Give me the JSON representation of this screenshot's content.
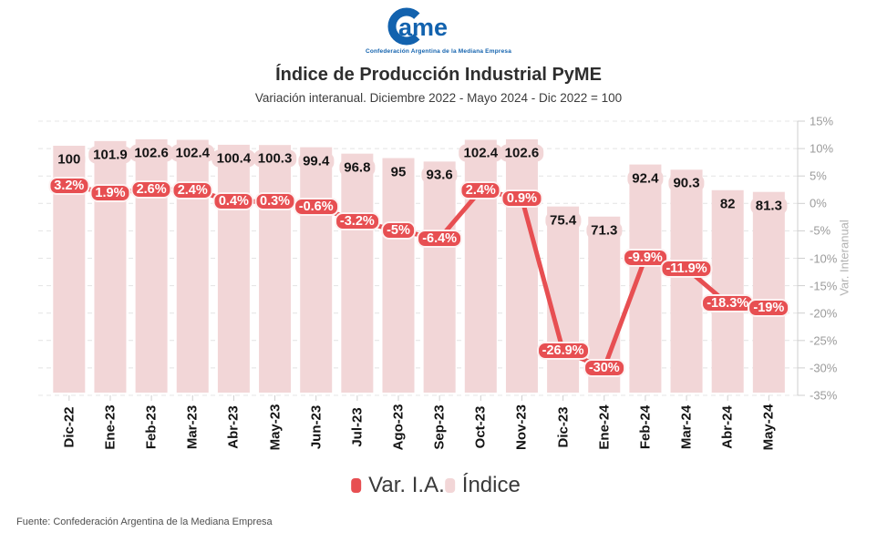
{
  "header": {
    "logo": {
      "wordmark": "Came",
      "wordmark_tail": "ame",
      "tagline": "Confederación Argentina de la Mediana Empresa"
    },
    "title": "Índice de Producción Industrial PyME",
    "subtitle": "Variación interanual. Diciembre 2022 - Mayo 2024 - Dic 2022 = 100"
  },
  "colors": {
    "brand_blue": "#1262ae",
    "line_red": "#e74f52",
    "bar_pink": "#f2d6d7"
  },
  "chart_data": {
    "type": "bar+line",
    "title": "Índice de Producción Industrial PyME",
    "subtitle": "Variación interanual. Diciembre 2022 - Mayo 2024 - Dic 2022 = 100",
    "categories": [
      "Dic-22",
      "Ene-23",
      "Feb-23",
      "Mar-23",
      "Abr-23",
      "May-23",
      "Jun-23",
      "Jul-23",
      "Ago-23",
      "Sep-23",
      "Oct-23",
      "Nov-23",
      "Dic-23",
      "Ene-24",
      "Feb-24",
      "Mar-24",
      "Abr-24",
      "May-24"
    ],
    "series": [
      {
        "name": "Índice",
        "type": "bar",
        "color": "#f2d6d7",
        "values": [
          100,
          101.9,
          102.6,
          102.4,
          100.4,
          100.3,
          99.4,
          96.8,
          95,
          93.6,
          102.4,
          102.6,
          75.4,
          71.3,
          92.4,
          90.3,
          82,
          81.3
        ],
        "labels": [
          "100",
          "101.9",
          "102.6",
          "102.4",
          "100.4",
          "100.3",
          "99.4",
          "96.8",
          "95",
          "93.6",
          "102.4",
          "102.6",
          "75.4",
          "71.3",
          "92.4",
          "90.3",
          "82",
          "81.3"
        ]
      },
      {
        "name": "Var. I.A.",
        "type": "line",
        "color": "#e74f52",
        "values": [
          3.2,
          1.9,
          2.6,
          2.4,
          0.4,
          0.3,
          -0.6,
          -3.2,
          -5,
          -6.4,
          2.4,
          0.9,
          -26.9,
          -30,
          -9.9,
          -11.9,
          -18.3,
          -19
        ],
        "labels": [
          "3.2%",
          "1.9%",
          "2.6%",
          "2.4%",
          "0.4%",
          "0.3%",
          "-0.6%",
          "-3.2%",
          "-5%",
          "-6.4%",
          "2.4%",
          "0.9%",
          "-26.9%",
          "-30%",
          "-9.9%",
          "-11.9%",
          "-18.3%",
          "-19%"
        ]
      }
    ],
    "right_axis": {
      "label": "Var. Interanual",
      "ticks": [
        "15%",
        "10%",
        "5%",
        "0%",
        "-5%",
        "-10%",
        "-15%",
        "-20%",
        "-25%",
        "-30%",
        "-35%"
      ],
      "tick_values": [
        15,
        10,
        5,
        0,
        -5,
        -10,
        -15,
        -20,
        -25,
        -30,
        -35
      ],
      "min": -35,
      "max": 15
    },
    "xlabel": "",
    "ylabel": "Var. Interanual",
    "grid": "dashed horizontal",
    "legend_position": "bottom"
  },
  "legend": {
    "items": [
      {
        "label": "Var. I.A.",
        "color": "#e74f52"
      },
      {
        "label": "Índice",
        "color": "#f2d6d7"
      }
    ]
  },
  "footer": {
    "source": "Fuente: Confederación Argentina de la Mediana Empresa"
  }
}
